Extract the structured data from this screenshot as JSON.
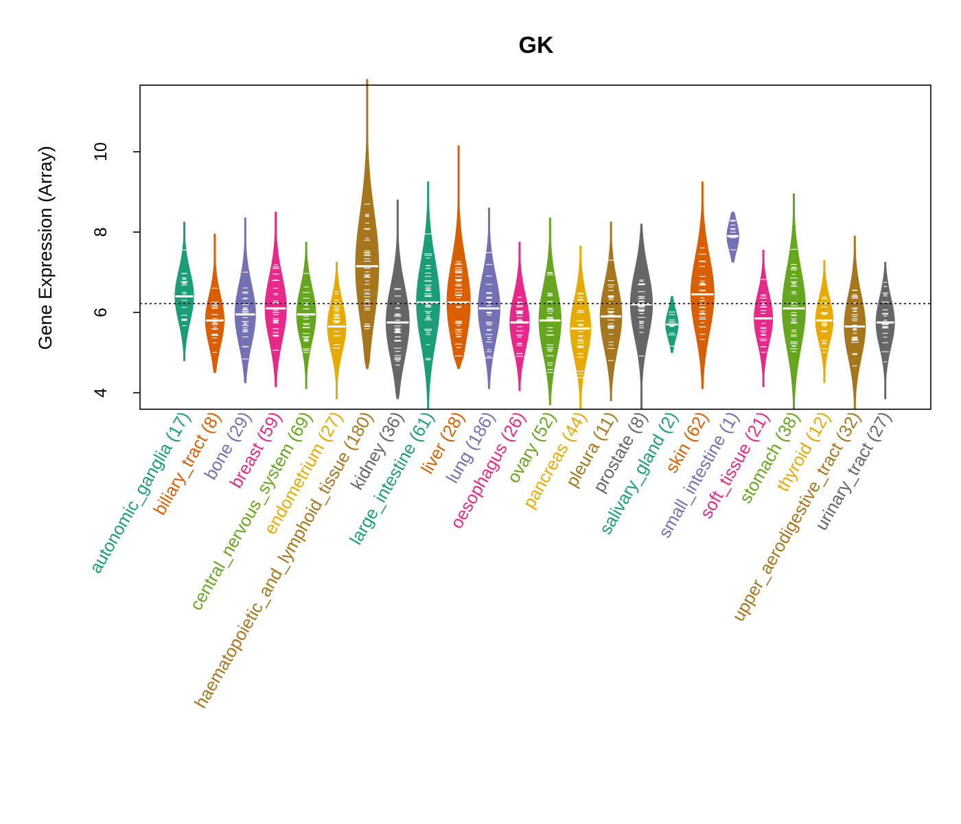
{
  "chart_data": {
    "type": "violin",
    "title": "GK",
    "xlabel": "",
    "ylabel": "Gene Expression (Array)",
    "ylim": [
      3.6,
      11.8
    ],
    "yticks": [
      4,
      6,
      8,
      10
    ],
    "reference_line": 6.22,
    "categories": [
      {
        "name": "autonomic_ganglia",
        "n": "(17)",
        "color": "#1B9E77",
        "min": 4.8,
        "max": 8.25,
        "median": 6.4
      },
      {
        "name": "biliary_tract",
        "n": "(8)",
        "color": "#D95F02",
        "min": 4.5,
        "max": 7.95,
        "median": 5.8
      },
      {
        "name": "bone",
        "n": "(29)",
        "color": "#7570B3",
        "min": 4.25,
        "max": 8.35,
        "median": 5.95
      },
      {
        "name": "breast",
        "n": "(59)",
        "color": "#E7298A",
        "min": 4.15,
        "max": 8.5,
        "median": 6.1
      },
      {
        "name": "central_nervous_system",
        "n": "(69)",
        "color": "#66A61E",
        "min": 4.1,
        "max": 7.75,
        "median": 5.95
      },
      {
        "name": "endometrium",
        "n": "(27)",
        "color": "#E6AB02",
        "min": 3.85,
        "max": 7.25,
        "median": 5.65
      },
      {
        "name": "haematopoietic_and_lymphoid_tissue",
        "n": "(180)",
        "color": "#A6761D",
        "min": 4.6,
        "max": 11.8,
        "median": 7.15
      },
      {
        "name": "kidney",
        "n": "(36)",
        "color": "#666666",
        "min": 3.85,
        "max": 8.8,
        "median": 5.75
      },
      {
        "name": "large_intestine",
        "n": "(61)",
        "color": "#1B9E77",
        "min": 3.6,
        "max": 9.25,
        "median": 6.25
      },
      {
        "name": "liver",
        "n": "(28)",
        "color": "#D95F02",
        "min": 4.6,
        "max": 10.15,
        "median": 6.25
      },
      {
        "name": "lung",
        "n": "(186)",
        "color": "#7570B3",
        "min": 4.1,
        "max": 8.6,
        "median": 6.1
      },
      {
        "name": "oesophagus",
        "n": "(26)",
        "color": "#E7298A",
        "min": 4.05,
        "max": 7.75,
        "median": 5.75
      },
      {
        "name": "ovary",
        "n": "(52)",
        "color": "#66A61E",
        "min": 3.7,
        "max": 8.35,
        "median": 5.8
      },
      {
        "name": "pancreas",
        "n": "(44)",
        "color": "#E6AB02",
        "min": 3.6,
        "max": 7.65,
        "median": 5.6
      },
      {
        "name": "pleura",
        "n": "(11)",
        "color": "#A6761D",
        "min": 3.8,
        "max": 8.25,
        "median": 5.9
      },
      {
        "name": "prostate",
        "n": "(8)",
        "color": "#666666",
        "min": 3.6,
        "max": 8.2,
        "median": 6.2
      },
      {
        "name": "salivary_gland",
        "n": "(2)",
        "color": "#1B9E77",
        "min": 5.0,
        "max": 6.4,
        "median": 5.7
      },
      {
        "name": "skin",
        "n": "(62)",
        "color": "#D95F02",
        "min": 4.1,
        "max": 9.25,
        "median": 6.45
      },
      {
        "name": "small_intestine",
        "n": "(1)",
        "color": "#7570B3",
        "min": 7.25,
        "max": 8.5,
        "median": 7.9
      },
      {
        "name": "soft_tissue",
        "n": "(21)",
        "color": "#E7298A",
        "min": 4.15,
        "max": 7.55,
        "median": 5.85
      },
      {
        "name": "stomach",
        "n": "(38)",
        "color": "#66A61E",
        "min": 3.6,
        "max": 8.95,
        "median": 6.1
      },
      {
        "name": "thyroid",
        "n": "(12)",
        "color": "#E6AB02",
        "min": 4.25,
        "max": 7.3,
        "median": 5.8
      },
      {
        "name": "upper_aerodigestive_tract",
        "n": "(32)",
        "color": "#A6761D",
        "min": 3.6,
        "max": 7.9,
        "median": 5.65
      },
      {
        "name": "urinary_tract",
        "n": "(27)",
        "color": "#666666",
        "min": 3.85,
        "max": 7.25,
        "median": 5.75
      }
    ]
  }
}
